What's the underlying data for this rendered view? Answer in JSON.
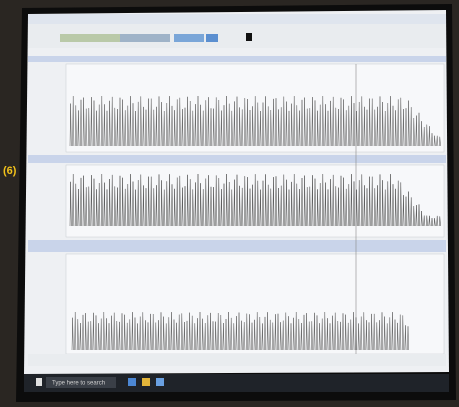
{
  "screen": {
    "label": "(6)",
    "taskbar": {
      "search": "Type here to search"
    }
  }
}
